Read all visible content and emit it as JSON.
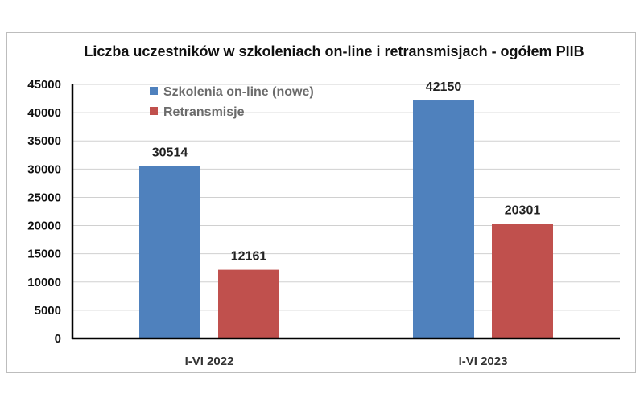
{
  "chart_data": {
    "type": "bar",
    "title": "Liczba uczestników w szkoleniach on-line i retransmisjach - ogółem PIIB",
    "categories": [
      "I-VI 2022",
      "I-VI 2023"
    ],
    "series": [
      {
        "name": "Szkolenia on-line (nowe)",
        "color": "#4f81bd",
        "values": [
          30514,
          42150
        ]
      },
      {
        "name": "Retransmisje",
        "color": "#c0504d",
        "values": [
          12161,
          20301
        ]
      }
    ],
    "ylim": [
      0,
      45000
    ],
    "yticks": [
      "0",
      "5000",
      "10000",
      "15000",
      "20000",
      "25000",
      "30000",
      "35000",
      "40000",
      "45000"
    ],
    "grid": true,
    "legend": "top-left"
  }
}
